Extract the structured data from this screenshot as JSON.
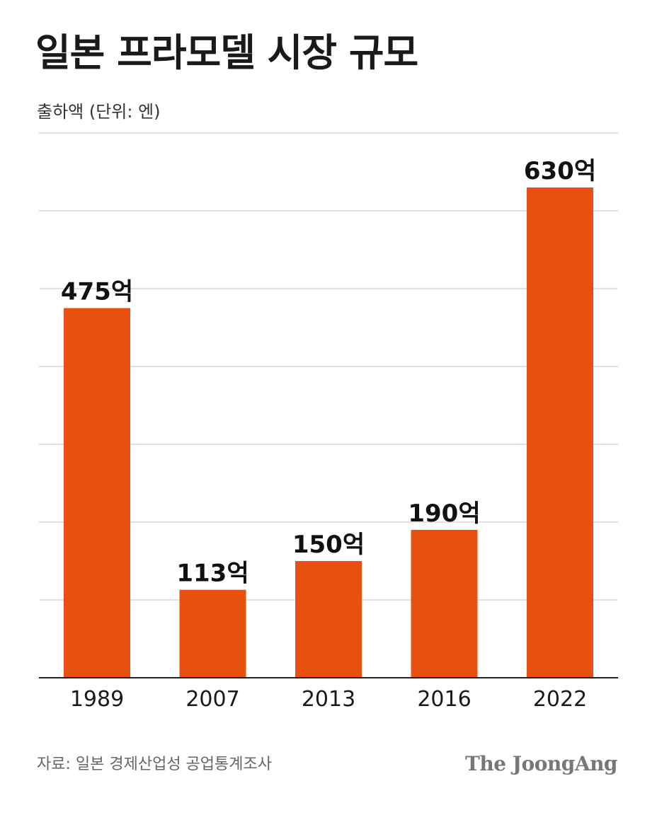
{
  "chart_data": {
    "type": "bar",
    "title": "일본 프라모델 시장 규모",
    "subtitle": "출하액 (단위: 엔)",
    "categories": [
      "1989",
      "2007",
      "2013",
      "2016",
      "2022"
    ],
    "values": [
      475,
      113,
      150,
      190,
      630
    ],
    "value_labels": [
      "475억",
      "113억",
      "150억",
      "190억",
      "630억"
    ],
    "unit": "억 엔",
    "ylim": [
      0,
      700
    ],
    "grid": true,
    "bar_color": "#e8500f",
    "grid_color": "#d9d9d9"
  },
  "footer": {
    "source": "자료: 일본 경제산업성 공업통계조사",
    "logo": "The JoongAng"
  }
}
